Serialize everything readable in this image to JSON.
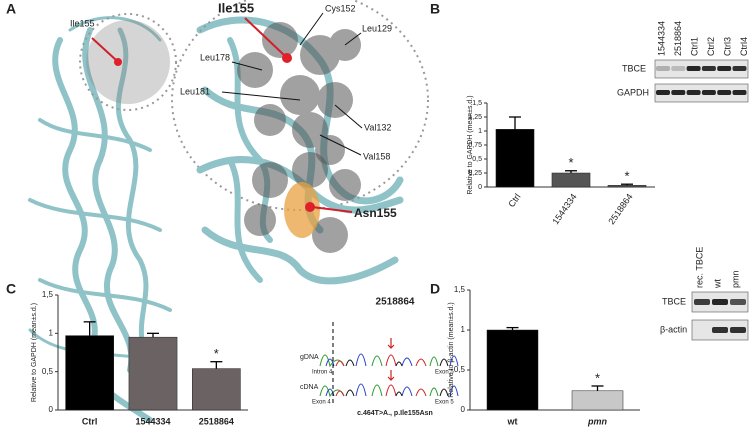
{
  "panels": [
    "A",
    "B",
    "C",
    "D"
  ],
  "structure": {
    "labels": [
      "Ile155",
      "Ile155",
      "Cys152",
      "Leu129",
      "Leu178",
      "Leu181",
      "Val132",
      "Val158",
      "Asn155"
    ]
  },
  "blot_b": {
    "lanes": [
      "1544334",
      "2518864",
      "Ctrl1",
      "Ctrl2",
      "Ctrl3",
      "Ctrl4"
    ],
    "rows": [
      "TBCE",
      "GAPDH"
    ]
  },
  "sequencing": {
    "title": "2518864",
    "tracks": [
      "gDNA",
      "cDNA"
    ],
    "regions": [
      "Intron 4",
      "Exon 5",
      "Exon 4",
      "Exon 5"
    ],
    "caption": "c.464T>A., p.Ile155Asn"
  },
  "blot_d": {
    "lanes": [
      "rec. TBCE",
      "wt",
      "pmn"
    ],
    "rows": [
      "TBCE",
      "β-actin"
    ]
  },
  "chart_data": [
    {
      "type": "bar",
      "y_label": "Relative to GAPDH (mean±s.d.)",
      "categories": [
        "Ctrl",
        "1544334",
        "2518864"
      ],
      "values": [
        1.03,
        0.25,
        0.03
      ],
      "errors": [
        0.22,
        0.04,
        0.02
      ],
      "colors": [
        "#000000",
        "#555555",
        "#555555"
      ],
      "significance": [
        null,
        "*",
        "*"
      ],
      "ylim": [
        0,
        1.5
      ],
      "yticks": [
        0,
        {
          "value": 0.25,
          "label": "0,25"
        },
        {
          "value": 0.5,
          "label": "0,5"
        },
        {
          "value": 0.75,
          "label": "0,75"
        },
        1,
        {
          "value": 1.25,
          "label": "1,25"
        },
        {
          "value": 1.5,
          "label": "1,5"
        }
      ]
    },
    {
      "type": "bar",
      "y_label": "Relative to GAPDH (mean±s.d.)",
      "categories": [
        "Ctrl",
        "1544334",
        "2518864"
      ],
      "values": [
        0.97,
        0.95,
        0.54
      ],
      "errors": [
        0.18,
        0.05,
        0.09
      ],
      "colors": [
        "#000000",
        "#6b6363",
        "#6b6363"
      ],
      "significance": [
        null,
        null,
        "*"
      ],
      "ylim": [
        0,
        1.5
      ],
      "yticks": [
        0,
        {
          "value": 0.5,
          "label": "0,5"
        },
        1,
        {
          "value": 1.5,
          "label": "1,5"
        }
      ]
    },
    {
      "type": "bar",
      "y_label": "Relative to β-actin (mean±s.d.)",
      "categories": [
        "wt",
        "pmn"
      ],
      "values": [
        1.0,
        0.24
      ],
      "errors": [
        0.03,
        0.06
      ],
      "colors": [
        "#000000",
        "#c8c8c8"
      ],
      "significance": [
        null,
        "*"
      ],
      "ylim": [
        0,
        1.5
      ],
      "yticks": [
        0,
        {
          "value": 0.5,
          "label": "0,5"
        },
        1,
        {
          "value": 1.5,
          "label": "1,5"
        }
      ]
    }
  ]
}
